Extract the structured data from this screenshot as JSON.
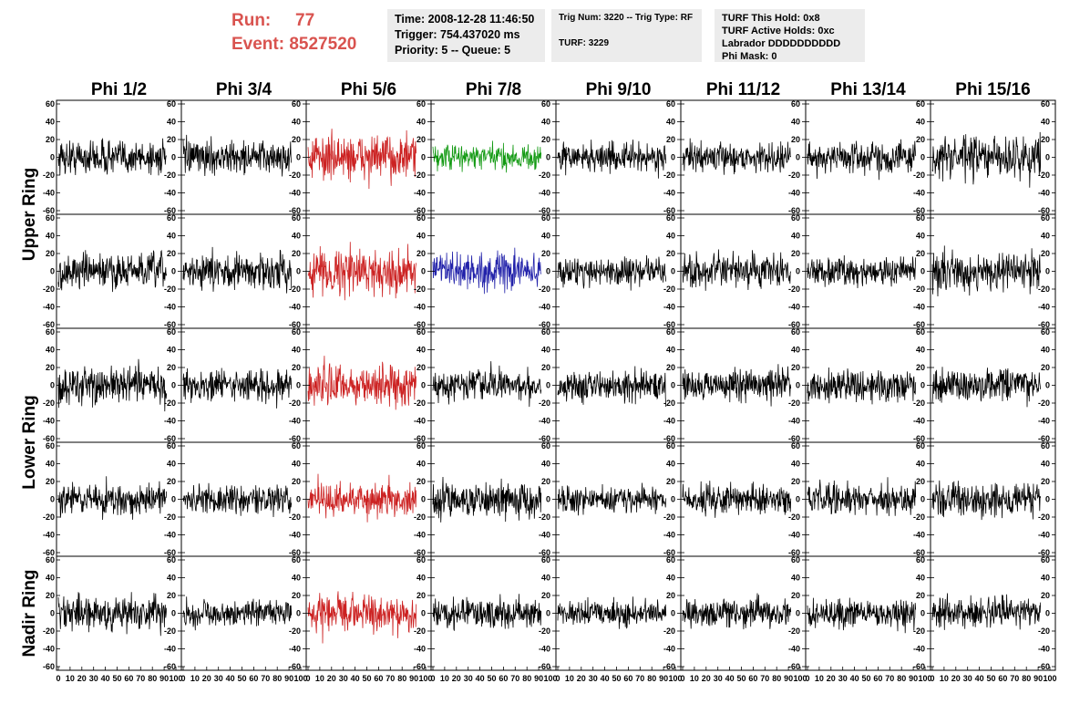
{
  "header": {
    "run_label": "Run:",
    "run_value": "77",
    "event_label": "Event:",
    "event_value": "8527520"
  },
  "info_boxes": {
    "time": [
      "Time: 2008-12-28 11:46:50",
      "Trigger: 754.437020 ms",
      "Priority: 5 -- Queue: 5"
    ],
    "trigger": [
      "Trig Num: 3220 -- Trig Type: RF",
      "TURF: 3229"
    ],
    "turf": [
      "TURF This Hold: 0x8",
      "TURF Active Holds: 0xc",
      "Labrador DDDDDDDDDD",
      "Phi Mask: 0"
    ]
  },
  "colors": {
    "default_trace": "#000000",
    "red_trace": "#cc2222",
    "green_trace": "#119911",
    "blue_trace": "#2222aa",
    "header_red": "#d9534f"
  },
  "chart_data": {
    "type": "line",
    "columns": [
      "Phi 1/2",
      "Phi 3/4",
      "Phi 5/6",
      "Phi 7/8",
      "Phi 9/10",
      "Phi 11/12",
      "Phi 13/14",
      "Phi 15/16"
    ],
    "ring_labels": [
      "Upper Ring",
      "Lower Ring",
      "Nadir Ring"
    ],
    "ylim": [
      -60,
      60
    ],
    "yticks": [
      "60",
      "40",
      "20",
      "0",
      "-20",
      "-40",
      "-60"
    ],
    "xlim": [
      0,
      100
    ],
    "xticks": [
      "0",
      "10",
      "20",
      "30",
      "40",
      "50",
      "60",
      "70",
      "80",
      "90",
      "100"
    ],
    "grid": false,
    "trace_colors": [
      [
        "default",
        "default",
        "red",
        "green",
        "default",
        "default",
        "default",
        "default"
      ],
      [
        "default",
        "default",
        "red",
        "blue",
        "default",
        "default",
        "default",
        "default"
      ],
      [
        "default",
        "default",
        "red",
        "default",
        "default",
        "default",
        "default",
        "default"
      ],
      [
        "default",
        "default",
        "red",
        "default",
        "default",
        "default",
        "default",
        "default"
      ],
      [
        "default",
        "default",
        "red",
        "default",
        "default",
        "default",
        "default",
        "default"
      ]
    ],
    "amplitude": [
      [
        22,
        20,
        28,
        16,
        18,
        17,
        20,
        26
      ],
      [
        22,
        22,
        28,
        22,
        18,
        20,
        18,
        24
      ],
      [
        24,
        20,
        26,
        20,
        18,
        20,
        20,
        22
      ],
      [
        20,
        18,
        22,
        22,
        16,
        18,
        20,
        22
      ],
      [
        24,
        16,
        24,
        18,
        16,
        18,
        18,
        20
      ]
    ],
    "samples_per_trace": 260
  }
}
